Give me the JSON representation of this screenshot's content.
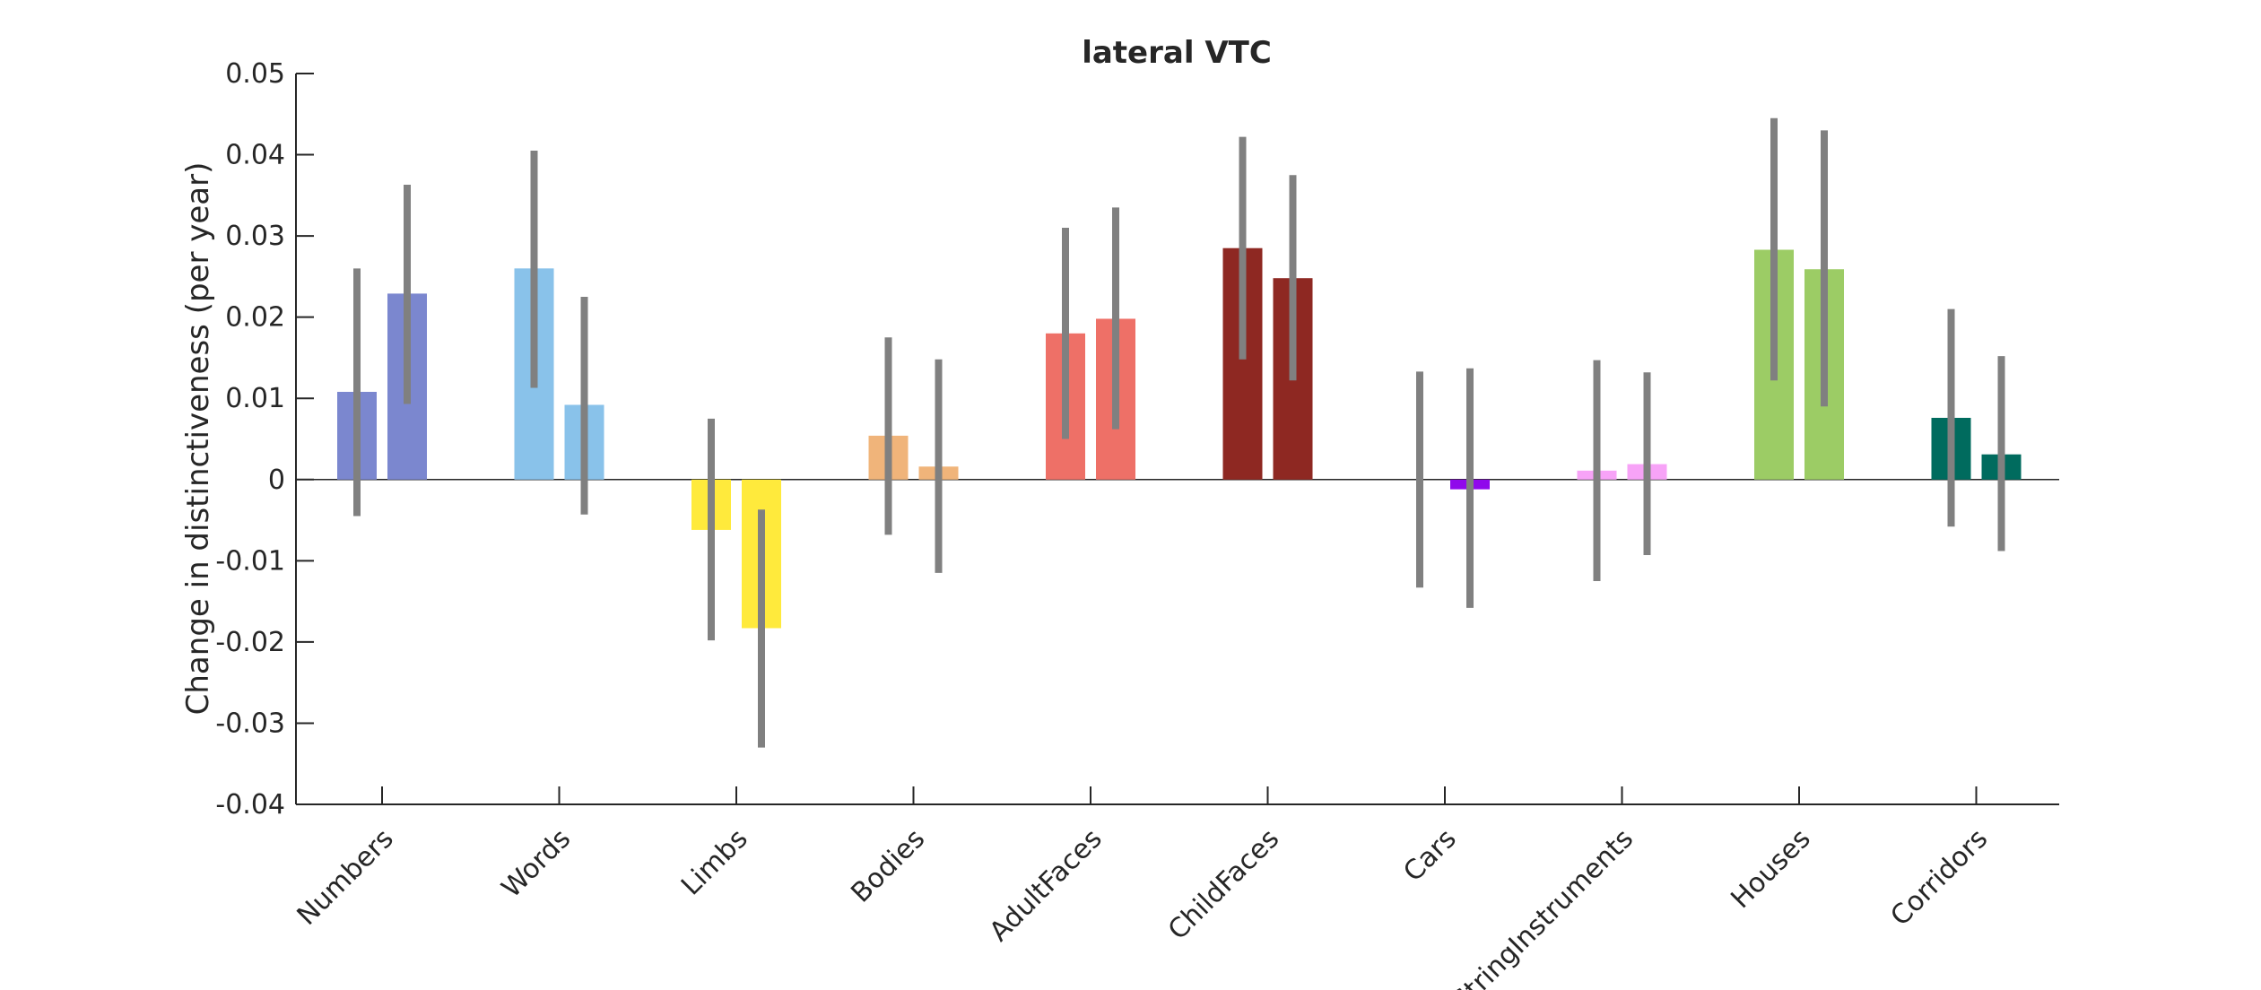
{
  "chart_data": {
    "type": "bar",
    "title": "lateral VTC",
    "xlabel": "",
    "ylabel": "Change in distinctiveness (per year)",
    "ylim": [
      -0.04,
      0.05
    ],
    "yticks": [
      -0.04,
      -0.03,
      -0.02,
      -0.01,
      0,
      0.01,
      0.02,
      0.03,
      0.04,
      0.05
    ],
    "ytick_labels": [
      "-0.04",
      "-0.03",
      "-0.02",
      "-0.01",
      "0",
      "0.01",
      "0.02",
      "0.03",
      "0.04",
      "0.05"
    ],
    "grid": false,
    "legend": "none",
    "error_bar_color": "#808080",
    "categories": [
      "Numbers",
      "Words",
      "Limbs",
      "Bodies",
      "AdultFaces",
      "ChildFaces",
      "Cars",
      "StringInstruments",
      "Houses",
      "Corridors"
    ],
    "colors": [
      "#7b87cf",
      "#89c2ea",
      "#ffea3c",
      "#f0b47a",
      "#ee7067",
      "#8e2822",
      "#9009eb",
      "#f7a3f7",
      "#9ccc65",
      "#006b5e"
    ],
    "series": [
      {
        "values": [
          0.0108,
          0.026,
          -0.0062,
          0.0054,
          0.018,
          0.0285,
          0.0,
          0.0011,
          0.0283,
          0.0076
        ],
        "err_low": [
          -0.0045,
          0.0113,
          -0.0198,
          -0.0068,
          0.005,
          0.0148,
          -0.0133,
          -0.0125,
          0.0122,
          -0.0058
        ],
        "err_high": [
          0.026,
          0.0405,
          0.0075,
          0.0175,
          0.031,
          0.0422,
          0.0133,
          0.0147,
          0.0445,
          0.021
        ]
      },
      {
        "values": [
          0.0229,
          0.0092,
          -0.0183,
          0.0016,
          0.0198,
          0.0248,
          -0.0012,
          0.0019,
          0.0259,
          0.0031
        ],
        "err_low": [
          0.0093,
          -0.0043,
          -0.033,
          -0.0115,
          0.0062,
          0.0122,
          -0.0158,
          -0.0093,
          0.009,
          -0.0088
        ],
        "err_high": [
          0.0363,
          0.0225,
          -0.0037,
          0.0148,
          0.0335,
          0.0375,
          0.0137,
          0.0132,
          0.043,
          0.0152
        ]
      }
    ]
  }
}
